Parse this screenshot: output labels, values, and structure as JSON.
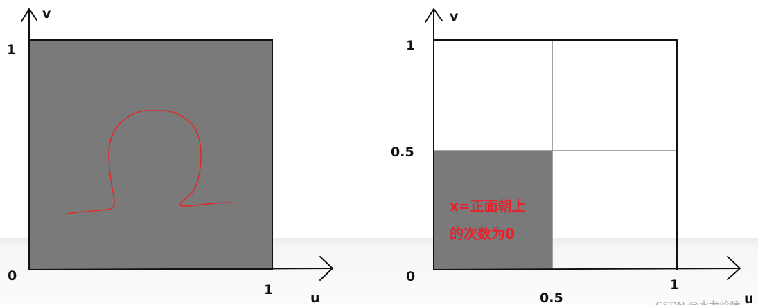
{
  "left_panel": {
    "v_label": "v",
    "v_tick_1": "1",
    "origin": "0",
    "u_tick_1": "1",
    "u_label": "u"
  },
  "right_panel": {
    "v_label": "v",
    "v_tick_1": "1",
    "v_tick_half": "0.5",
    "origin": "0",
    "u_tick_half": "0.5",
    "u_tick_1": "1",
    "u_label": "u",
    "annotation_line1": "x=正面朝上",
    "annotation_line2": "的次数为0"
  },
  "colors": {
    "fill": "#7a7a7a",
    "curve": "#e02a2a",
    "annotation": "#e8202a",
    "grid": "#8c8c8c"
  },
  "watermark": "CSDN @水龙吟啸"
}
